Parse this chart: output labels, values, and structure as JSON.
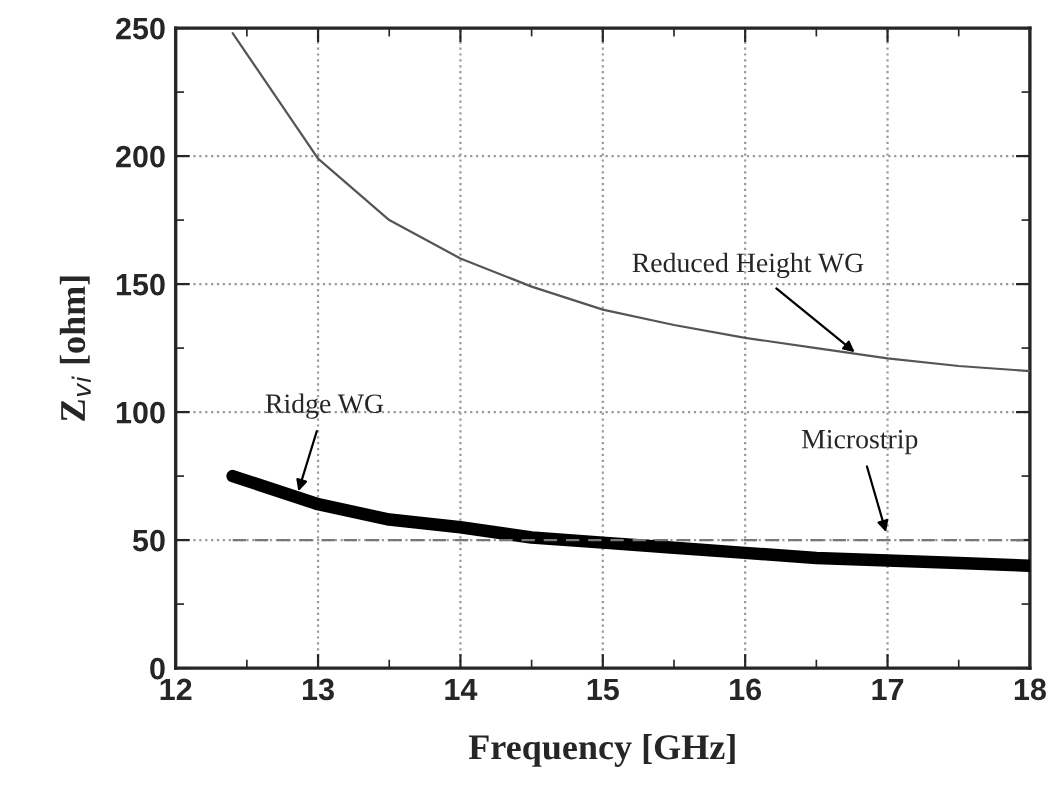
{
  "chart_data": {
    "type": "line",
    "xlabel": "Frequency [GHz]",
    "ylabel": "Z$_{vi}$ [ohm]",
    "x": [
      12.4,
      13,
      13.5,
      14,
      14.5,
      15,
      15.5,
      16,
      16.5,
      17,
      17.5,
      18
    ],
    "series": [
      {
        "color": "#555555",
        "line_style": "solid",
        "values": [
          248,
          199,
          175,
          160,
          149,
          140,
          134,
          129,
          125,
          121,
          118,
          116
        ]
      },
      {
        "color": "#000000",
        "line_style": "solid",
        "values": [
          75,
          64,
          58,
          55,
          51,
          49,
          47,
          45,
          43,
          42,
          41,
          40
        ]
      },
      {
        "color": "#777777",
        "line_style": "dashed",
        "values": [
          50,
          50,
          50,
          50,
          50,
          50,
          50,
          50,
          50,
          50,
          50,
          50
        ]
      }
    ],
    "annotations": [
      {
        "text": "Reduced Height WG",
        "x": 16.8,
        "y": 122
      },
      {
        "text": "Ridge WG",
        "x": 12.85,
        "y": 67
      },
      {
        "text": "Microstrip",
        "x": 17.0,
        "y": 51
      }
    ],
    "xlim": [
      12,
      18
    ],
    "xticks": [
      12,
      13,
      14,
      15,
      16,
      17,
      18
    ],
    "ylim": [
      0,
      250
    ],
    "yticks": [
      0,
      50,
      100,
      150,
      200,
      250
    ],
    "grid": true,
    "marker": "none"
  }
}
